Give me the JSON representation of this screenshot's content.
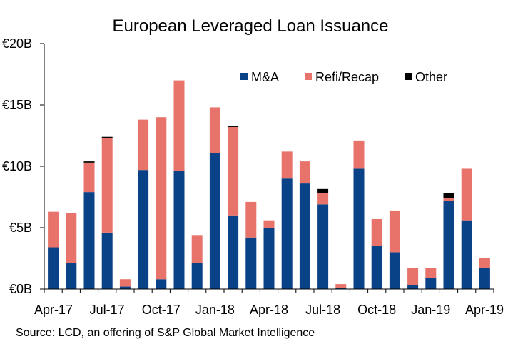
{
  "chart_data": {
    "type": "bar",
    "stacked": true,
    "title": "European Leveraged Loan Issuance",
    "source": "Source: LCD, an offering of S&P Global Market Intelligence",
    "categories": [
      "Apr-17",
      "May-17",
      "Jun-17",
      "Jul-17",
      "Aug-17",
      "Sep-17",
      "Oct-17",
      "Nov-17",
      "Dec-17",
      "Jan-18",
      "Feb-18",
      "Mar-18",
      "Apr-18",
      "May-18",
      "Jun-18",
      "Jul-18",
      "Aug-18",
      "Sep-18",
      "Oct-18",
      "Nov-18",
      "Dec-18",
      "Jan-19",
      "Feb-19",
      "Mar-19",
      "Apr-19"
    ],
    "x_tick_labels": [
      "Apr-17",
      "Jul-17",
      "Oct-17",
      "Jan-18",
      "Apr-18",
      "Jul-18",
      "Oct-18",
      "Jan-19",
      "Apr-19"
    ],
    "x_tick_categories": [
      "Apr-17",
      "Jul-17",
      "Oct-17",
      "Jan-18",
      "Apr-18",
      "Jul-18",
      "Oct-18",
      "Jan-19",
      "Apr-19"
    ],
    "y_ticks": [
      0,
      5,
      10,
      15,
      20
    ],
    "y_tick_labels": [
      "€0B",
      "€5B",
      "€10B",
      "€15B",
      "€20B"
    ],
    "ylim": [
      0,
      20
    ],
    "series": [
      {
        "name": "M&A",
        "color": "#0a4288",
        "values": [
          3.4,
          2.1,
          7.9,
          4.6,
          0.2,
          9.7,
          0.8,
          9.6,
          2.1,
          11.1,
          6.0,
          4.2,
          5.0,
          9.0,
          8.6,
          6.9,
          0.1,
          9.8,
          3.5,
          3.0,
          0.3,
          0.9,
          7.2,
          5.6,
          1.7
        ]
      },
      {
        "name": "Refi/Recap",
        "color": "#e8736b",
        "values": [
          2.9,
          4.1,
          2.4,
          7.7,
          0.6,
          4.1,
          13.2,
          7.4,
          2.3,
          3.7,
          7.2,
          2.9,
          0.6,
          2.2,
          1.8,
          0.9,
          0.3,
          2.3,
          2.2,
          3.4,
          1.4,
          0.8,
          0.2,
          4.2,
          0.8
        ]
      },
      {
        "name": "Other",
        "color": "#000000",
        "values": [
          0,
          0,
          0.1,
          0.1,
          0,
          0,
          0,
          0,
          0,
          0,
          0.1,
          0,
          0,
          0,
          0,
          0.35,
          0,
          0,
          0,
          0,
          0,
          0,
          0.4,
          0,
          0
        ]
      }
    ],
    "legend_position": "top-right",
    "grid": false
  }
}
